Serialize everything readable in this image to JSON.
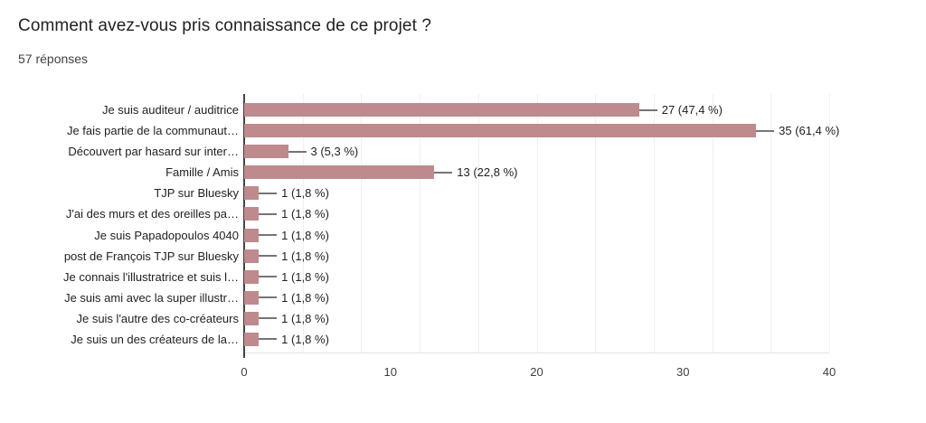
{
  "header": {
    "title": "Comment avez-vous pris connaissance de ce projet ?",
    "responses_count": "57 réponses"
  },
  "chart_data": {
    "type": "bar",
    "orientation": "horizontal",
    "title": "Comment avez-vous pris connaissance de ce projet ?",
    "subtitle": "57 réponses",
    "categories": [
      "Je suis auditeur / auditrice",
      "Je fais partie de la communaut…",
      "Découvert par hasard sur inter…",
      "Famille / Amis",
      "TJP sur Bluesky",
      "J'ai des murs et des oreilles pa…",
      "Je suis Papadopoulos 4040",
      "post de François TJP sur Bluesky",
      "Je connais l'illustratrice et suis l…",
      "Je suis ami avec la super illustr…",
      "Je suis l'autre des co-créateurs",
      "Je suis un des créateurs de la…"
    ],
    "values": [
      27,
      35,
      3,
      13,
      1,
      1,
      1,
      1,
      1,
      1,
      1,
      1
    ],
    "value_labels": [
      "27 (47,4 %)",
      "35 (61,4 %)",
      "3 (5,3 %)",
      "13 (22,8 %)",
      "1 (1,8 %)",
      "1 (1,8 %)",
      "1 (1,8 %)",
      "1 (1,8 %)",
      "1 (1,8 %)",
      "1 (1,8 %)",
      "1 (1,8 %)",
      "1 (1,8 %)"
    ],
    "xlim": [
      0,
      40
    ],
    "x_ticks": [
      0,
      10,
      20,
      30,
      40
    ],
    "grid": true,
    "legend": "none",
    "bar_color": "#bf8a8d"
  },
  "colors": {
    "bar": "#bf8a8d",
    "title_text": "#212121",
    "subtitle_text": "#424242",
    "axis_text": "#3c4043",
    "gridline": "#f0f0f0",
    "baseline": "#e4e4e4",
    "axis_line": "#424242",
    "connector": "#757575",
    "background": "#ffffff"
  }
}
